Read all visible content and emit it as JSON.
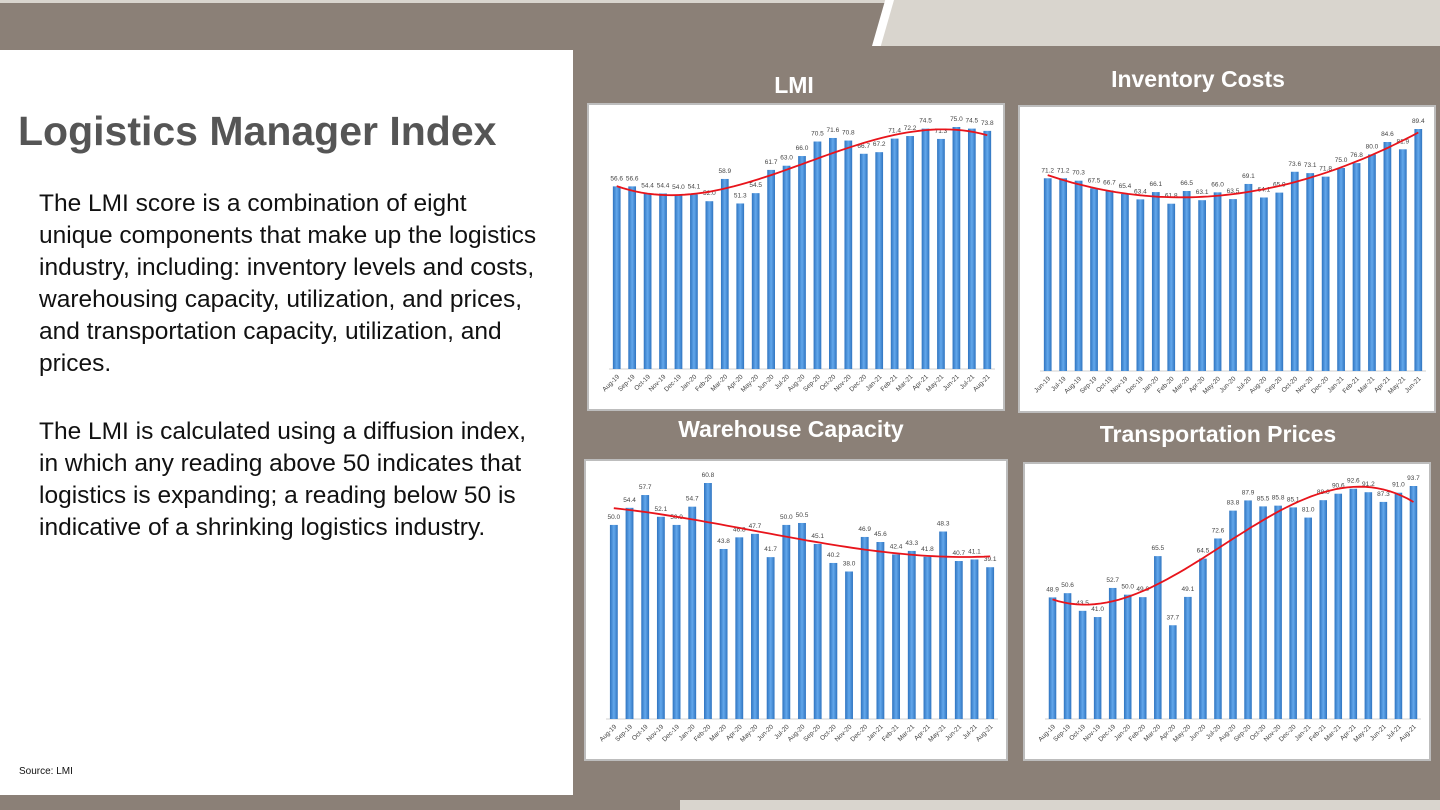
{
  "slide": {
    "title": "Logistics Manager Index",
    "paragraph1": "The LMI score is a combination of eight unique components that make up the logistics industry, including: inventory levels and costs, warehousing capacity, utilization, and prices, and transportation capacity, utilization, and prices.",
    "paragraph2": "The LMI is calculated using a diffusion index, in which any reading above 50 indicates that logistics is expanding; a reading below 50 is indicative of a shrinking logistics industry.",
    "source": "Source: LMI"
  },
  "colors": {
    "bar": "#4a90d9",
    "trend": "#e8141b",
    "background": "#8b8077"
  },
  "chart_data": [
    {
      "type": "bar",
      "title": "LMI",
      "categories": [
        "Aug-19",
        "Sep-19",
        "Oct-19",
        "Nov-19",
        "Dec-19",
        "Jan-20",
        "Feb-20",
        "Mar-20",
        "Apr-20",
        "May-20",
        "Jun-20",
        "Jul-20",
        "Aug-20",
        "Sep-20",
        "Oct-20",
        "Nov-20",
        "Dec-20",
        "Jan-21",
        "Feb-21",
        "Mar-21",
        "Apr-21",
        "May-21",
        "Jun-21",
        "Jul-21",
        "Aug-21"
      ],
      "values": [
        56.6,
        56.6,
        54.4,
        54.4,
        54.0,
        54.1,
        52.0,
        58.9,
        51.3,
        54.5,
        61.7,
        63.0,
        66.0,
        70.5,
        71.6,
        70.8,
        66.7,
        67.2,
        71.4,
        72.2,
        74.5,
        71.3,
        75.0,
        74.5,
        73.8
      ],
      "trendline": "polynomial",
      "data_labels": true,
      "grid": false
    },
    {
      "type": "bar",
      "title": "Inventory Costs",
      "categories": [
        "Jun-19",
        "Jul-19",
        "Aug-19",
        "Sep-19",
        "Oct-19",
        "Nov-19",
        "Dec-19",
        "Jan-20",
        "Feb-20",
        "Mar-20",
        "Apr-20",
        "May-20",
        "Jun-20",
        "Jul-20",
        "Aug-20",
        "Sep-20",
        "Oct-20",
        "Nov-20",
        "Dec-20",
        "Jan-21",
        "Feb-21",
        "Mar-21",
        "Apr-21",
        "May-21",
        "Jun-21"
      ],
      "values": [
        71.2,
        71.2,
        70.3,
        67.5,
        66.7,
        65.4,
        63.4,
        66.1,
        61.8,
        66.5,
        63.1,
        66.0,
        63.5,
        69.1,
        64.1,
        65.9,
        73.6,
        73.1,
        71.8,
        75.0,
        76.8,
        80.0,
        84.6,
        81.9,
        89.4
      ],
      "trendline": "polynomial",
      "data_labels": true,
      "grid": false
    },
    {
      "type": "bar",
      "title": "Warehouse Capacity",
      "categories": [
        "Aug-19",
        "Sep-19",
        "Oct-19",
        "Nov-19",
        "Dec-19",
        "Jan-20",
        "Feb-20",
        "Mar-20",
        "Apr-20",
        "May-20",
        "Jun-20",
        "Jul-20",
        "Aug-20",
        "Sep-20",
        "Oct-20",
        "Nov-20",
        "Dec-20",
        "Jan-21",
        "Feb-21",
        "Mar-21",
        "Apr-21",
        "May-21",
        "Jun-21",
        "Jul-21",
        "Aug-21"
      ],
      "values": [
        50.0,
        54.4,
        57.7,
        52.1,
        50.0,
        54.7,
        60.8,
        43.8,
        46.8,
        47.7,
        41.7,
        50.0,
        50.5,
        45.1,
        40.2,
        38.0,
        46.9,
        45.6,
        42.4,
        43.3,
        41.8,
        48.3,
        40.7,
        41.1,
        39.1
      ],
      "trendline": "polynomial",
      "data_labels": true,
      "grid": false
    },
    {
      "type": "bar",
      "title": "Transportation Prices",
      "categories": [
        "Aug-19",
        "Sep-19",
        "Oct-19",
        "Nov-19",
        "Dec-19",
        "Jan-20",
        "Feb-20",
        "Mar-20",
        "Apr-20",
        "May-20",
        "Jun-20",
        "Jul-20",
        "Aug-20",
        "Sep-20",
        "Oct-20",
        "Nov-20",
        "Dec-20",
        "Jan-21",
        "Feb-21",
        "Mar-21",
        "Apr-21",
        "May-21",
        "Jun-21",
        "Jul-21",
        "Aug-21"
      ],
      "values": [
        48.9,
        50.6,
        43.5,
        41.0,
        52.7,
        50.0,
        49.0,
        65.5,
        37.7,
        49.1,
        64.5,
        72.6,
        83.8,
        87.9,
        85.5,
        85.8,
        85.1,
        81.0,
        88.0,
        90.6,
        92.6,
        91.2,
        87.3,
        91.0,
        93.7
      ],
      "trendline": "polynomial",
      "data_labels": true,
      "grid": false
    }
  ]
}
